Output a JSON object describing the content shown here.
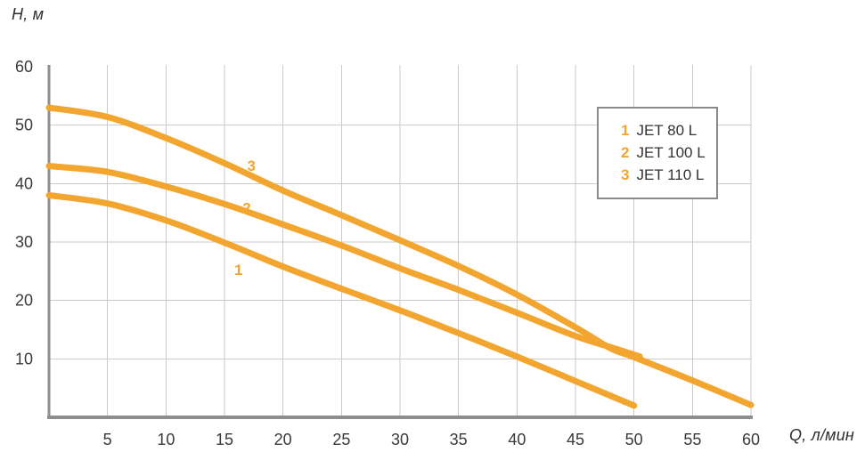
{
  "chart_data": {
    "type": "line",
    "title": "",
    "ylabel": "H, м",
    "xlabel": "Q, л/мин",
    "xlim": [
      0,
      60
    ],
    "ylim": [
      0,
      60
    ],
    "x_ticks": [
      5,
      10,
      15,
      20,
      25,
      30,
      35,
      40,
      45,
      50,
      55,
      60
    ],
    "y_ticks": [
      10,
      20,
      30,
      40,
      50,
      60
    ],
    "grid": true,
    "legend_position": "top-right-inside",
    "series": [
      {
        "num": "1",
        "name": "JET 80 L",
        "label_at": {
          "q": 16.2,
          "h": 25.3
        },
        "points": [
          [
            0,
            38
          ],
          [
            5,
            36.6
          ],
          [
            10,
            33.7
          ],
          [
            15,
            29.9
          ],
          [
            20,
            25.8
          ],
          [
            25,
            22
          ],
          [
            30,
            18.3
          ],
          [
            35,
            14.4
          ],
          [
            40,
            10.4
          ],
          [
            45,
            6.2
          ],
          [
            50,
            2
          ]
        ]
      },
      {
        "num": "2",
        "name": "JET 100 L",
        "label_at": {
          "q": 16.9,
          "h": 35.9
        },
        "points": [
          [
            0,
            43
          ],
          [
            5,
            42
          ],
          [
            10,
            39.5
          ],
          [
            15,
            36.5
          ],
          [
            20,
            33
          ],
          [
            25,
            29.4
          ],
          [
            30,
            25.5
          ],
          [
            35,
            21.8
          ],
          [
            40,
            17.9
          ],
          [
            45,
            13.9
          ],
          [
            48,
            12
          ],
          [
            50.5,
            10.4
          ]
        ]
      },
      {
        "num": "3",
        "name": "JET 110 L",
        "label_at": {
          "q": 17.3,
          "h": 43.1
        },
        "points": [
          [
            0,
            53
          ],
          [
            5,
            51.4
          ],
          [
            10,
            47.8
          ],
          [
            15,
            43.5
          ],
          [
            20,
            38.8
          ],
          [
            25,
            34.6
          ],
          [
            30,
            30.3
          ],
          [
            35,
            25.9
          ],
          [
            40,
            21
          ],
          [
            45,
            15.4
          ],
          [
            48,
            11.8
          ],
          [
            50,
            10.3
          ],
          [
            55,
            6.3
          ],
          [
            60,
            2.1
          ]
        ]
      }
    ],
    "colors": {
      "curve": "#F2A52F",
      "grid": "#CBCBCB",
      "axis": "#8E8E8E",
      "text": "#3A3A3A"
    }
  }
}
